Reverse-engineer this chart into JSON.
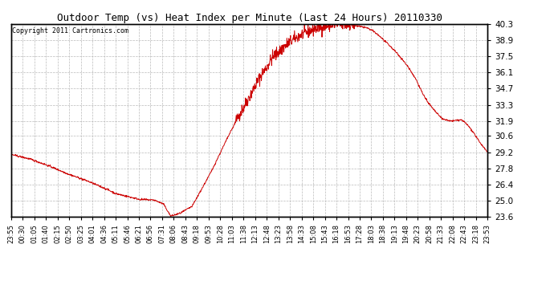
{
  "title": "Outdoor Temp (vs) Heat Index per Minute (Last 24 Hours) 20110330",
  "copyright": "Copyright 2011 Cartronics.com",
  "line_color": "#cc0000",
  "background_color": "#ffffff",
  "plot_bg_color": "#ffffff",
  "grid_color": "#bbbbbb",
  "grid_style": "--",
  "yticks": [
    23.6,
    25.0,
    26.4,
    27.8,
    29.2,
    30.6,
    31.9,
    33.3,
    34.7,
    36.1,
    37.5,
    38.9,
    40.3
  ],
  "xtick_labels": [
    "23:55",
    "00:30",
    "01:05",
    "01:40",
    "02:15",
    "02:50",
    "03:25",
    "04:01",
    "04:36",
    "05:11",
    "05:46",
    "06:21",
    "06:56",
    "07:31",
    "08:06",
    "08:43",
    "09:18",
    "09:53",
    "10:28",
    "11:03",
    "11:38",
    "12:13",
    "12:48",
    "13:23",
    "13:58",
    "14:33",
    "15:08",
    "15:43",
    "16:18",
    "16:53",
    "17:28",
    "18:03",
    "18:38",
    "19:13",
    "19:48",
    "20:23",
    "20:58",
    "21:33",
    "22:08",
    "22:43",
    "23:18",
    "23:53"
  ],
  "ymin": 23.6,
  "ymax": 40.3,
  "keypoints_t": [
    0.0,
    0.04,
    0.08,
    0.12,
    0.16,
    0.2,
    0.22,
    0.25,
    0.27,
    0.3,
    0.32,
    0.335,
    0.355,
    0.38,
    0.42,
    0.455,
    0.48,
    0.5,
    0.52,
    0.535,
    0.55,
    0.565,
    0.58,
    0.595,
    0.61,
    0.625,
    0.64,
    0.655,
    0.67,
    0.685,
    0.7,
    0.715,
    0.73,
    0.745,
    0.76,
    0.775,
    0.79,
    0.805,
    0.82,
    0.835,
    0.85,
    0.865,
    0.875,
    0.885,
    0.895,
    0.905,
    0.915,
    0.925,
    0.935,
    0.945,
    0.955,
    0.965,
    0.975,
    0.985,
    1.0
  ],
  "keypoints_v": [
    29.0,
    28.6,
    28.0,
    27.3,
    26.7,
    26.0,
    25.6,
    25.3,
    25.1,
    25.05,
    24.7,
    23.65,
    23.9,
    24.5,
    27.5,
    30.5,
    32.5,
    34.0,
    35.5,
    36.5,
    37.5,
    38.0,
    38.6,
    39.0,
    39.4,
    39.7,
    39.9,
    40.1,
    40.2,
    40.25,
    40.2,
    40.2,
    40.1,
    40.0,
    39.7,
    39.2,
    38.6,
    38.0,
    37.3,
    36.5,
    35.5,
    34.2,
    33.5,
    33.0,
    32.5,
    32.1,
    31.95,
    31.9,
    31.95,
    32.0,
    31.7,
    31.2,
    30.6,
    30.0,
    29.2
  ]
}
